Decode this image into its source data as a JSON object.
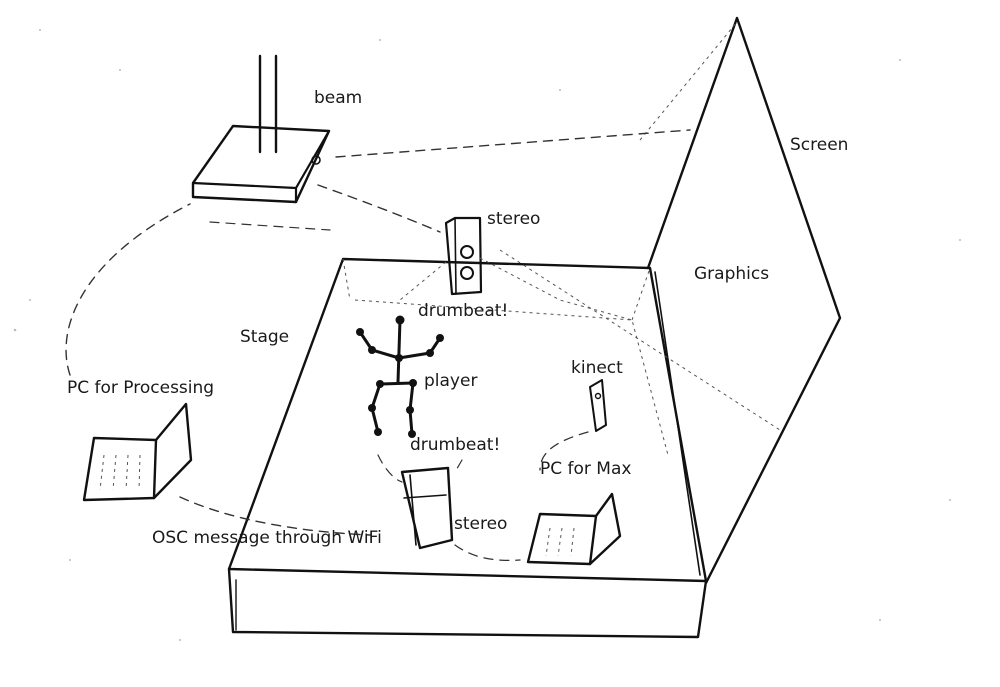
{
  "labels": {
    "beam": "beam",
    "screen": "Screen",
    "stereo_top": "stereo",
    "graphics": "Graphics",
    "drumbeat_top": "drumbeat!",
    "stage": "Stage",
    "player": "player",
    "kinect": "kinect",
    "pc_processing": "PC for Processing",
    "drumbeat_bottom": "drumbeat!",
    "pc_max": "PC for Max",
    "stereo_bottom": "stereo",
    "osc": "OSC message through WiFi"
  }
}
